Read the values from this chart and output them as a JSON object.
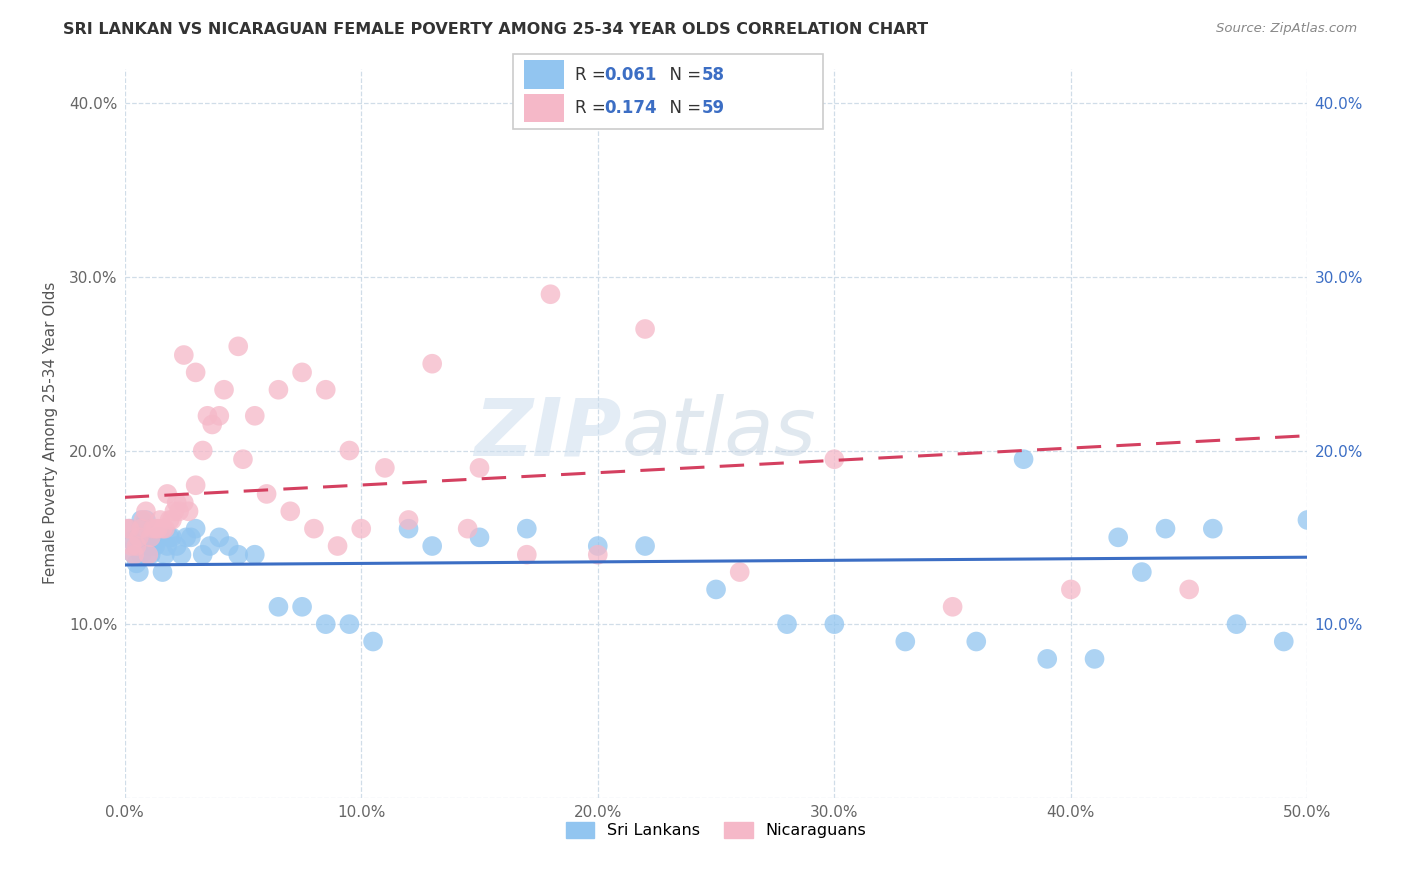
{
  "title": "SRI LANKAN VS NICARAGUAN FEMALE POVERTY AMONG 25-34 YEAR OLDS CORRELATION CHART",
  "source": "Source: ZipAtlas.com",
  "ylabel": "Female Poverty Among 25-34 Year Olds",
  "xlim": [
    0.0,
    0.5
  ],
  "ylim": [
    0.0,
    0.42
  ],
  "xticks": [
    0.0,
    0.1,
    0.2,
    0.3,
    0.4,
    0.5
  ],
  "xticklabels": [
    "0.0%",
    "10.0%",
    "20.0%",
    "30.0%",
    "40.0%",
    "50.0%"
  ],
  "yticks": [
    0.0,
    0.1,
    0.2,
    0.3,
    0.4
  ],
  "yticklabels": [
    "",
    "10.0%",
    "20.0%",
    "30.0%",
    "40.0%"
  ],
  "legend1_label": "Sri Lankans",
  "legend2_label": "Nicaraguans",
  "sri_R": "0.061",
  "sri_N": "58",
  "nic_R": "0.174",
  "nic_N": "59",
  "sri_color": "#92c5f0",
  "nic_color": "#f5b8c8",
  "sri_line_color": "#3c6ec4",
  "nic_line_color": "#d44060",
  "background_color": "#ffffff",
  "grid_color": "#d0dde8",
  "title_color": "#333333",
  "sri_x": [
    0.002,
    0.003,
    0.004,
    0.005,
    0.006,
    0.007,
    0.007,
    0.008,
    0.009,
    0.01,
    0.01,
    0.011,
    0.012,
    0.013,
    0.014,
    0.015,
    0.016,
    0.017,
    0.018,
    0.019,
    0.02,
    0.022,
    0.024,
    0.026,
    0.028,
    0.03,
    0.033,
    0.036,
    0.04,
    0.044,
    0.048,
    0.055,
    0.065,
    0.075,
    0.085,
    0.095,
    0.105,
    0.12,
    0.13,
    0.15,
    0.17,
    0.2,
    0.22,
    0.25,
    0.28,
    0.3,
    0.33,
    0.36,
    0.39,
    0.41,
    0.43,
    0.44,
    0.46,
    0.47,
    0.49,
    0.5,
    0.38,
    0.42
  ],
  "sri_y": [
    0.155,
    0.148,
    0.14,
    0.135,
    0.13,
    0.14,
    0.16,
    0.15,
    0.16,
    0.14,
    0.145,
    0.14,
    0.145,
    0.145,
    0.15,
    0.15,
    0.13,
    0.14,
    0.145,
    0.15,
    0.15,
    0.145,
    0.14,
    0.15,
    0.15,
    0.155,
    0.14,
    0.145,
    0.15,
    0.145,
    0.14,
    0.14,
    0.11,
    0.11,
    0.1,
    0.1,
    0.09,
    0.155,
    0.145,
    0.15,
    0.155,
    0.145,
    0.145,
    0.12,
    0.1,
    0.1,
    0.09,
    0.09,
    0.08,
    0.08,
    0.13,
    0.155,
    0.155,
    0.1,
    0.09,
    0.16,
    0.195,
    0.15
  ],
  "nic_x": [
    0.001,
    0.002,
    0.003,
    0.004,
    0.005,
    0.006,
    0.007,
    0.008,
    0.009,
    0.01,
    0.011,
    0.012,
    0.013,
    0.014,
    0.015,
    0.016,
    0.017,
    0.018,
    0.019,
    0.02,
    0.021,
    0.022,
    0.023,
    0.025,
    0.027,
    0.03,
    0.033,
    0.037,
    0.042,
    0.048,
    0.055,
    0.065,
    0.075,
    0.085,
    0.095,
    0.11,
    0.13,
    0.15,
    0.18,
    0.22,
    0.26,
    0.3,
    0.35,
    0.4,
    0.45,
    0.03,
    0.025,
    0.035,
    0.04,
    0.05,
    0.06,
    0.07,
    0.08,
    0.09,
    0.1,
    0.12,
    0.145,
    0.17,
    0.2
  ],
  "nic_y": [
    0.155,
    0.155,
    0.145,
    0.14,
    0.145,
    0.15,
    0.155,
    0.16,
    0.165,
    0.14,
    0.15,
    0.155,
    0.155,
    0.155,
    0.16,
    0.155,
    0.155,
    0.175,
    0.16,
    0.16,
    0.165,
    0.17,
    0.165,
    0.17,
    0.165,
    0.18,
    0.2,
    0.215,
    0.235,
    0.26,
    0.22,
    0.235,
    0.245,
    0.235,
    0.2,
    0.19,
    0.25,
    0.19,
    0.29,
    0.27,
    0.13,
    0.195,
    0.11,
    0.12,
    0.12,
    0.245,
    0.255,
    0.22,
    0.22,
    0.195,
    0.175,
    0.165,
    0.155,
    0.145,
    0.155,
    0.16,
    0.155,
    0.14,
    0.14
  ]
}
